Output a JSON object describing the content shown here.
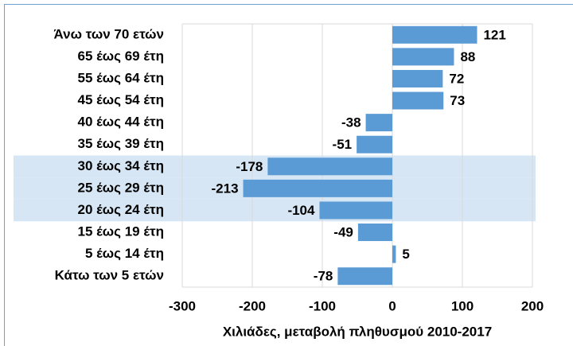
{
  "chart_data": {
    "type": "barh",
    "categories": [
      "Άνω των 70 ετών",
      "65 έως 69 έτη",
      "55 έως 64 έτη",
      "45 έως 54 έτη",
      "40 έως 44 έτη",
      "35 έως 39 έτη",
      "30 έως 34 έτη",
      "25 έως 29 έτη",
      "20 έως 24 έτη",
      "15 έως 19 έτη",
      "5 έως 14 έτη",
      "Κάτω των 5 ετών"
    ],
    "values": [
      121,
      88,
      72,
      73,
      -38,
      -51,
      -178,
      -213,
      -104,
      -49,
      5,
      -78
    ],
    "color": "#5b9bd5",
    "highlight": [
      6,
      7,
      8
    ],
    "highlight_color": "#d6e6f4",
    "xlabel": "Χιλιάδες, μεταβολή πληθυσμού 2010-2017",
    "xlim": [
      -300,
      200
    ],
    "xticks": [
      -300,
      -200,
      -100,
      0,
      100,
      200
    ],
    "grid": true
  }
}
